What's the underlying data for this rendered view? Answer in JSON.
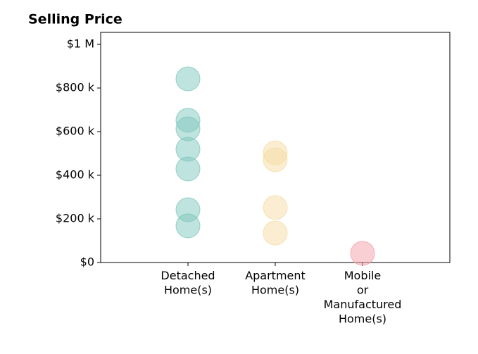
{
  "chart_data": {
    "type": "strip",
    "title": "Selling Price",
    "categories": [
      "Detached\nHome(s)",
      "Apartment\nHome(s)",
      "Mobile\nor\nManufactured\nHome(s)"
    ],
    "values": [
      [
        842000,
        652000,
        613000,
        519000,
        429000,
        242000,
        168000
      ],
      [
        503000,
        471000,
        252000,
        135000
      ],
      [
        42000
      ]
    ],
    "colors": [
      "#7fc8bd",
      "#f5dca3",
      "#f3a0aa"
    ],
    "xlim": [
      -1,
      3
    ],
    "ylim": [
      0,
      1055000
    ],
    "yticks": [
      {
        "value": 0,
        "label": "$0"
      },
      {
        "value": 200000,
        "label": "$200 k"
      },
      {
        "value": 400000,
        "label": "$400 k"
      },
      {
        "value": 600000,
        "label": "$600 k"
      },
      {
        "value": 800000,
        "label": "$800 k"
      },
      {
        "value": 1000000,
        "label": "$1 M"
      }
    ]
  }
}
